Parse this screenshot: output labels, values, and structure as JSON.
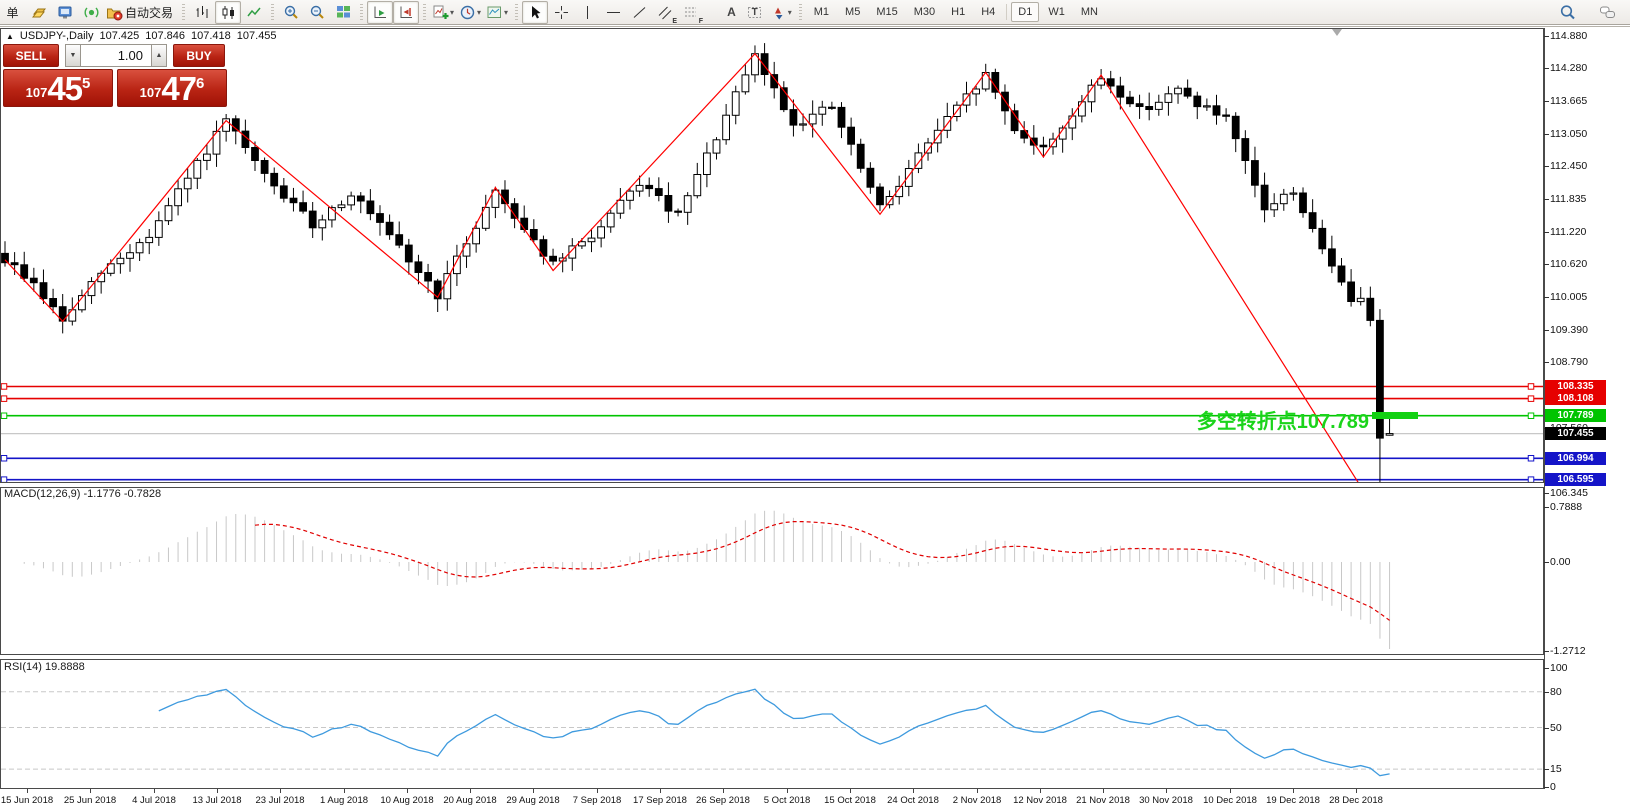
{
  "toolbar": {
    "items": [
      {
        "name": "new-order-button",
        "label": "单"
      },
      {
        "name": "quotes-button",
        "icon": "gold-icon"
      },
      {
        "name": "terminal-button",
        "icon": "terminal-icon"
      },
      {
        "name": "signal-button",
        "icon": "signal-icon"
      },
      {
        "name": "autotrading-button",
        "icon": "autotrading-icon",
        "label": "自动交易"
      },
      {
        "sep": true
      },
      {
        "name": "bar-chart-button",
        "icon": "bar-chart-icon"
      },
      {
        "name": "candlestick-chart-button",
        "icon": "candlestick-icon",
        "active": true
      },
      {
        "name": "line-chart-button",
        "icon": "line-chart-icon"
      },
      {
        "sep": true
      },
      {
        "name": "zoom-in-button",
        "icon": "zoom-in-icon"
      },
      {
        "name": "zoom-out-button",
        "icon": "zoom-out-icon"
      },
      {
        "name": "tile-windows-button",
        "icon": "tile-windows-icon"
      },
      {
        "sep": true
      },
      {
        "name": "auto-scroll-button",
        "icon": "auto-scroll-icon",
        "active": true
      },
      {
        "name": "chart-shift-button",
        "icon": "chart-shift-icon",
        "active": true
      },
      {
        "sep": true
      },
      {
        "name": "indicators-button",
        "icon": "add-indicator-icon",
        "caret": true
      },
      {
        "name": "periods-button",
        "icon": "clock-icon",
        "caret": true
      },
      {
        "name": "templates-button",
        "icon": "template-icon",
        "caret": true
      },
      {
        "sep": true
      },
      {
        "name": "cursor-button",
        "icon": "cursor-icon",
        "active": true
      },
      {
        "name": "crosshair-button",
        "icon": "crosshair-icon"
      },
      {
        "name": "vertical-line-button",
        "icon": "vertical-line-icon"
      },
      {
        "name": "horizontal-line-button",
        "icon": "horizontal-line-icon"
      },
      {
        "name": "trendline-button",
        "icon": "trendline-icon"
      },
      {
        "name": "equidistant-channel-button",
        "icon": "channel-icon",
        "letter": "E"
      },
      {
        "name": "fibonacci-button",
        "icon": "fibonacci-icon",
        "letter": "F"
      },
      {
        "name": "text-button",
        "icon": "text-icon",
        "letter_big": "A"
      },
      {
        "name": "text-label-button",
        "icon": "text-label-icon",
        "letter_big": "T"
      },
      {
        "name": "arrows-button",
        "icon": "arrows-icon",
        "caret": true
      },
      {
        "sep": true
      }
    ],
    "timeframes": [
      "M1",
      "M5",
      "M15",
      "M30",
      "H1",
      "H4",
      "D1",
      "W1",
      "MN"
    ],
    "active_timeframe": "D1",
    "right_items": [
      {
        "name": "search-button",
        "icon": "search-icon"
      },
      {
        "name": "chat-button",
        "icon": "chat-icon"
      }
    ]
  },
  "one_click": {
    "sell_label": "SELL",
    "buy_label": "BUY",
    "volume": "1.00",
    "sell_price": {
      "prefix": "107",
      "big": "45",
      "sup": "5"
    },
    "buy_price": {
      "prefix": "107",
      "big": "47",
      "sup": "6"
    }
  },
  "symbol_bar": {
    "collapse_icon": "▲",
    "symbol": "USDJPY-,Daily",
    "open": "107.425",
    "high": "107.846",
    "low": "107.418",
    "close": "107.455"
  },
  "annotation": {
    "text": "多空转折点107.789",
    "text_color": "#1BD41B",
    "bar_color": "#12D112"
  },
  "chart_data": {
    "type": "candlestick",
    "symbol": "USDJPY",
    "timeframe": "Daily",
    "candle_count": 145,
    "up_color": "#ffffff",
    "down_color": "#000000",
    "outline_color": "#000000",
    "price_axis_ticks": [
      "114.880",
      "114.280",
      "113.665",
      "113.050",
      "112.450",
      "111.835",
      "111.220",
      "110.620",
      "110.005",
      "109.390",
      "108.790",
      "107.560",
      "106.345"
    ],
    "hlines": [
      {
        "label": "108.335",
        "price": 108.335,
        "color": "#E60000"
      },
      {
        "label": "108.108",
        "price": 108.108,
        "color": "#E60000"
      },
      {
        "label": "107.789",
        "price": 107.789,
        "color": "#00C400"
      },
      {
        "label": "106.994",
        "price": 106.994,
        "color": "#1414C8"
      },
      {
        "label": "106.595",
        "price": 106.595,
        "color": "#1414C8"
      }
    ],
    "bid_line": {
      "label": "107.455",
      "price": 107.455,
      "line_color": "#C8C8C8",
      "label_bg": "#000000"
    },
    "zigzag": {
      "color": "#FF0000",
      "points": [
        [
          0,
          110.7
        ],
        [
          6,
          109.55
        ],
        [
          23,
          113.3
        ],
        [
          45,
          110.0
        ],
        [
          51,
          112.05
        ],
        [
          57,
          110.5
        ],
        [
          78,
          114.55
        ],
        [
          91,
          111.55
        ],
        [
          102,
          114.2
        ],
        [
          108,
          112.62
        ],
        [
          114,
          114.15
        ],
        [
          143,
          105.9
        ]
      ]
    },
    "candle_path_anchors": [
      [
        0,
        110.7
      ],
      [
        3,
        110.25
      ],
      [
        6,
        109.55
      ],
      [
        10,
        110.45
      ],
      [
        15,
        111.15
      ],
      [
        23,
        113.28
      ],
      [
        27,
        112.25
      ],
      [
        32,
        111.35
      ],
      [
        36,
        111.95
      ],
      [
        41,
        110.9
      ],
      [
        45,
        110.05
      ],
      [
        51,
        112.0
      ],
      [
        57,
        110.6
      ],
      [
        62,
        111.3
      ],
      [
        66,
        112.15
      ],
      [
        70,
        111.5
      ],
      [
        78,
        114.5
      ],
      [
        82,
        113.25
      ],
      [
        86,
        113.55
      ],
      [
        91,
        111.65
      ],
      [
        96,
        112.9
      ],
      [
        102,
        114.15
      ],
      [
        105,
        113.15
      ],
      [
        108,
        112.75
      ],
      [
        114,
        114.1
      ],
      [
        118,
        113.5
      ],
      [
        122,
        113.85
      ],
      [
        127,
        113.3
      ],
      [
        131,
        111.65
      ],
      [
        134,
        112.0
      ],
      [
        137,
        110.85
      ],
      [
        139,
        110.35
      ],
      [
        140,
        109.85
      ],
      [
        141,
        110.05
      ],
      [
        142,
        109.65
      ]
    ],
    "last_candles": [
      {
        "open": 109.7,
        "high": 109.78,
        "low": 105.9,
        "close": 107.37
      },
      {
        "open": 107.425,
        "high": 107.846,
        "low": 107.418,
        "close": 107.455
      }
    ],
    "macd": {
      "title": "MACD(12,26,9)",
      "values": "-1.1776 -0.7828",
      "axis": [
        "0.7888",
        "0.00",
        "-1.2712"
      ],
      "histogram_color": "#C8C8C8",
      "signal_color": "#E00000"
    },
    "rsi": {
      "title": "RSI(14)",
      "value": "19.8888",
      "levels": [
        80,
        50,
        15
      ],
      "axis": [
        "100",
        "80",
        "50",
        "15",
        "0"
      ],
      "line_color": "#3E9ADE",
      "level_color": "#C8C8C8"
    },
    "time_axis": [
      "15 Jun 2018",
      "25 Jun 2018",
      "4 Jul 2018",
      "13 Jul 2018",
      "23 Jul 2018",
      "1 Aug 2018",
      "10 Aug 2018",
      "20 Aug 2018",
      "29 Aug 2018",
      "7 Sep 2018",
      "17 Sep 2018",
      "26 Sep 2018",
      "5 Oct 2018",
      "15 Oct 2018",
      "24 Oct 2018",
      "2 Nov 2018",
      "12 Nov 2018",
      "21 Nov 2018",
      "30 Nov 2018",
      "10 Dec 2018",
      "19 Dec 2018",
      "28 Dec 2018"
    ]
  }
}
